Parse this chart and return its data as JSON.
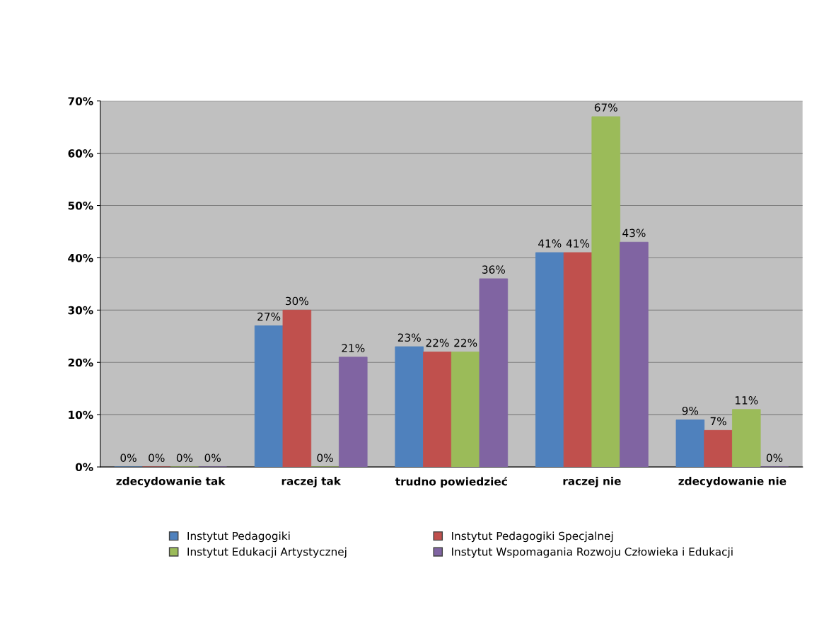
{
  "chart_data": {
    "type": "bar",
    "categories": [
      "zdecydowanie tak",
      "raczej tak",
      "trudno powiedzieć",
      "raczej nie",
      "zdecydowanie nie"
    ],
    "series": [
      {
        "name": "Instytut Pedagogiki",
        "color": "#4f81bd",
        "values": [
          0,
          27,
          23,
          41,
          9
        ],
        "value_labels": [
          "0%",
          "27%",
          "23%",
          "41%",
          "9%"
        ]
      },
      {
        "name": "Instytut Pedagogiki Specjalnej",
        "color": "#c0504d",
        "values": [
          0,
          30,
          22,
          41,
          7
        ],
        "value_labels": [
          "0%",
          "30%",
          "22%",
          "41%",
          "7%"
        ]
      },
      {
        "name": "Instytut Edukacji Artystycznej",
        "color": "#9bbb59",
        "values": [
          0,
          0,
          22,
          67,
          11
        ],
        "value_labels": [
          "0%",
          "0%",
          "22%",
          "67%",
          "11%"
        ]
      },
      {
        "name": "Instytut Wspomagania Rozwoju Człowieka i Edukacji",
        "color": "#8064a2",
        "values": [
          0,
          21,
          36,
          43,
          0
        ],
        "value_labels": [
          "0%",
          "21%",
          "36%",
          "43%",
          "0%"
        ]
      }
    ],
    "ylim": [
      0,
      70
    ],
    "yticks": [
      {
        "value": 0,
        "label": "0%"
      },
      {
        "value": 10,
        "label": "10%"
      },
      {
        "value": 20,
        "label": "20%"
      },
      {
        "value": 30,
        "label": "30%"
      },
      {
        "value": 40,
        "label": "40%"
      },
      {
        "value": 50,
        "label": "50%"
      },
      {
        "value": 60,
        "label": "60%"
      },
      {
        "value": 70,
        "label": "70%"
      }
    ],
    "grid": "y",
    "legend": "bottom"
  }
}
